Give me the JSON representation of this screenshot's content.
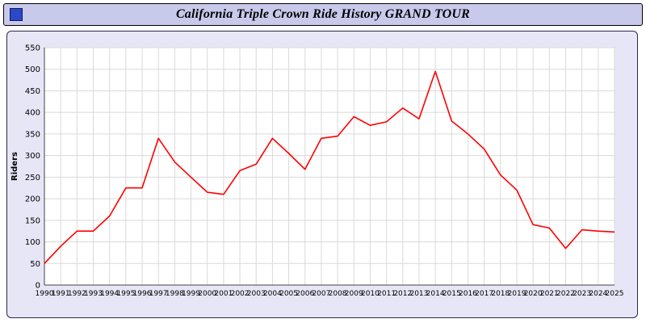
{
  "window": {
    "title": "California Triple Crown Ride History GRAND TOUR",
    "icon": "blue-square-icon"
  },
  "chart_data": {
    "type": "line",
    "title": "California Triple Crown Ride History GRAND TOUR",
    "xlabel": "",
    "ylabel": "Riders",
    "ylim": [
      0,
      550
    ],
    "ytick_step": 50,
    "grid": true,
    "legend": "none",
    "line_color": "#ff0000",
    "plot_bg": "#ffffff",
    "grid_color": "#d9d9d9",
    "categories": [
      1990,
      1991,
      1992,
      1993,
      1994,
      1995,
      1996,
      1997,
      1998,
      1999,
      2000,
      2001,
      2002,
      2003,
      2004,
      2005,
      2006,
      2007,
      2008,
      2009,
      2010,
      2011,
      2012,
      2013,
      2014,
      2015,
      2016,
      2017,
      2018,
      2019,
      2020,
      2021,
      2022,
      2023,
      2024,
      2025
    ],
    "values": [
      50,
      90,
      125,
      125,
      160,
      225,
      225,
      340,
      285,
      250,
      215,
      210,
      265,
      280,
      340,
      305,
      268,
      340,
      345,
      390,
      370,
      378,
      410,
      385,
      495,
      380,
      350,
      315,
      255,
      220,
      140,
      132,
      85,
      128,
      125,
      123
    ]
  }
}
